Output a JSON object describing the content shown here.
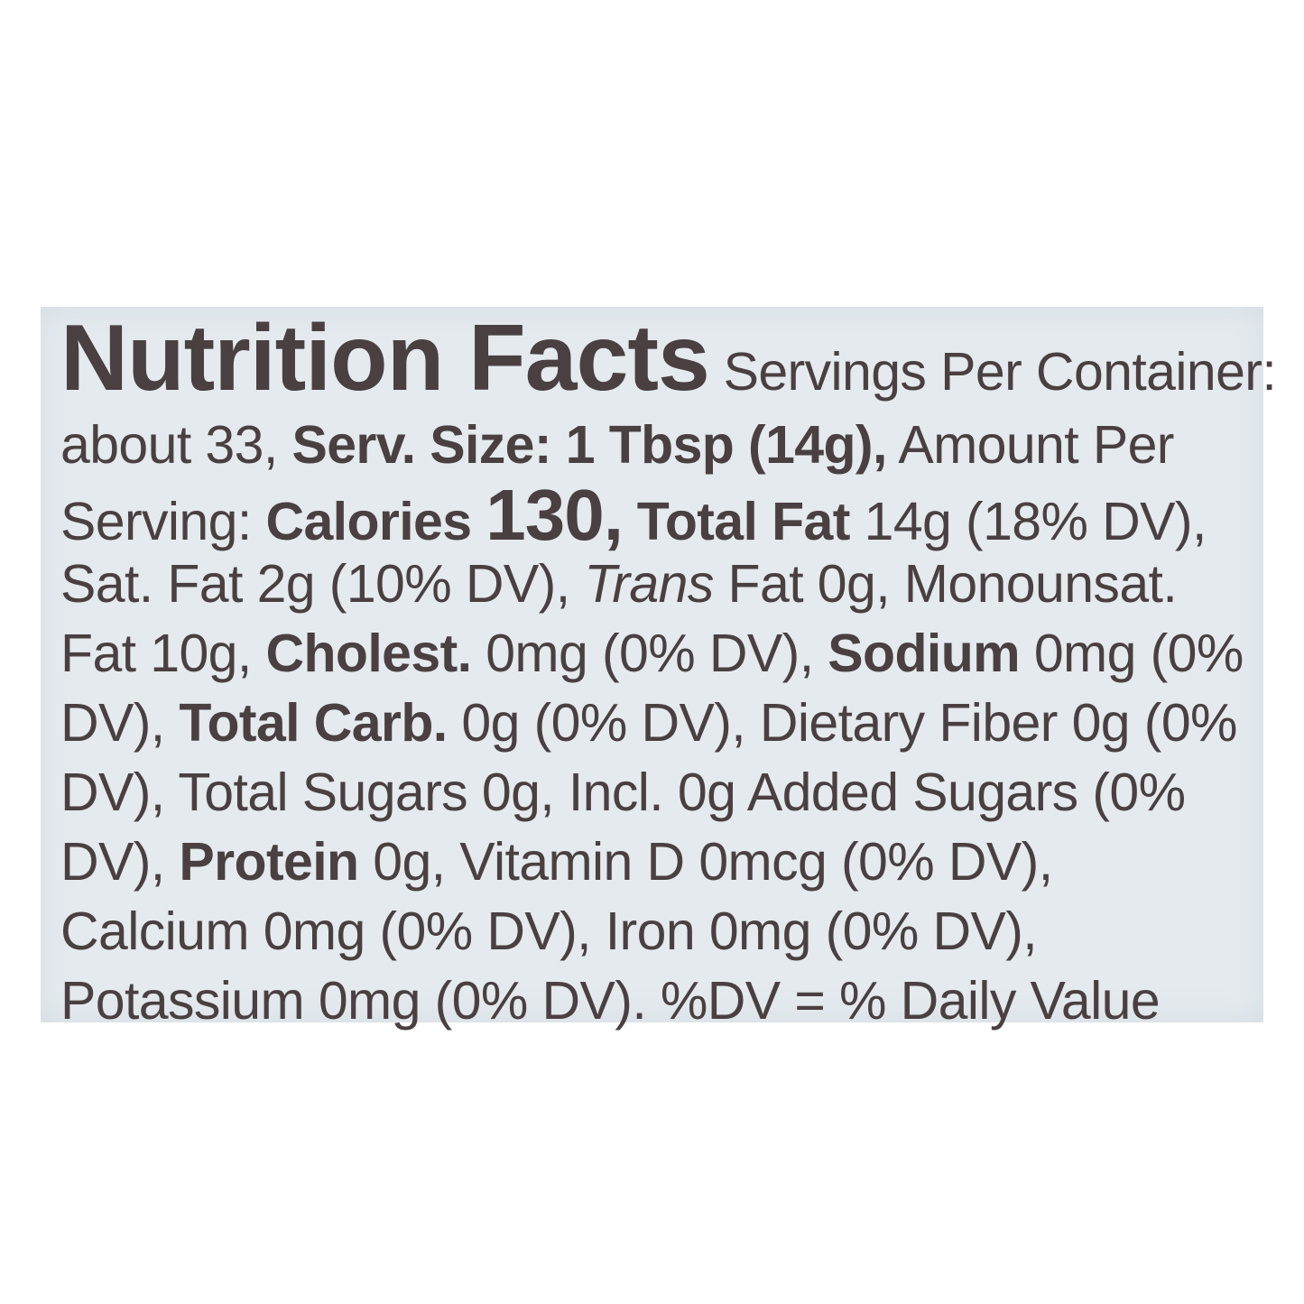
{
  "label": {
    "background_color": "#e4eaee",
    "text_color": "#4a4041",
    "lines": [
      [
        {
          "t": "Nutrition Facts",
          "s": "title"
        },
        {
          "t": " Servings Per Container:"
        }
      ],
      [
        {
          "t": "about 33, "
        },
        {
          "t": "Serv. Size: 1 Tbsp (14g),",
          "s": "b"
        },
        {
          "t": " Amount Per"
        }
      ],
      [
        {
          "t": "Serving: "
        },
        {
          "t": "Calories ",
          "s": "b"
        },
        {
          "t": "130,",
          "s": "big"
        },
        {
          "t": " Total Fat",
          "s": "b"
        },
        {
          "t": " 14g (18% DV),"
        }
      ],
      [
        {
          "t": "Sat. Fat 2g (10% DV), "
        },
        {
          "t": "Trans",
          "s": "i"
        },
        {
          "t": " Fat 0g, Monounsat."
        }
      ],
      [
        {
          "t": "Fat 10g, "
        },
        {
          "t": "Cholest.",
          "s": "b"
        },
        {
          "t": " 0mg (0% DV), "
        },
        {
          "t": "Sodium",
          "s": "b"
        },
        {
          "t": " 0mg (0%"
        }
      ],
      [
        {
          "t": "DV), "
        },
        {
          "t": "Total Carb.",
          "s": "b"
        },
        {
          "t": " 0g (0% DV), Dietary Fiber 0g (0%"
        }
      ],
      [
        {
          "t": "DV), Total Sugars 0g, Incl. 0g Added Sugars (0%"
        }
      ],
      [
        {
          "t": "DV), "
        },
        {
          "t": "Protein",
          "s": "b"
        },
        {
          "t": " 0g, Vitamin D 0mcg (0% DV),"
        }
      ],
      [
        {
          "t": "Calcium 0mg (0% DV), Iron 0mg (0% DV),"
        }
      ],
      [
        {
          "t": "Potassium 0mg (0% DV). %DV = % Daily Value"
        }
      ]
    ]
  }
}
